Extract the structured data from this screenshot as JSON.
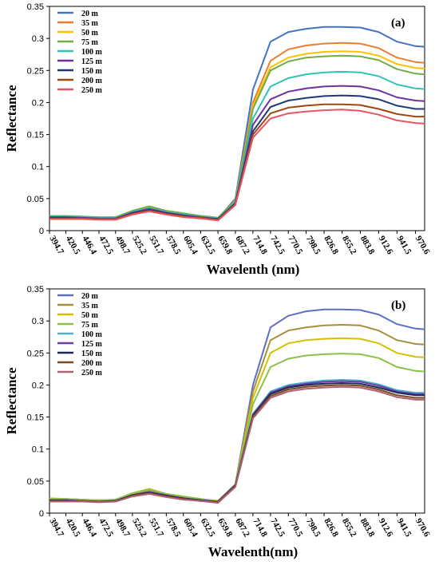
{
  "chart_data": [
    {
      "type": "line",
      "panel_label": "(a)",
      "xlabel": "Wavelenth (nm)",
      "ylabel": "Reflectance",
      "ylim": [
        0,
        0.35
      ],
      "yticks": [
        "0",
        "0.05",
        "0.1",
        "0.15",
        "0.2",
        "0.25",
        "0.3",
        "0.35"
      ],
      "xtick_labels": [
        "394.7",
        "420.5",
        "446.4",
        "472.5",
        "498.7",
        "525.2",
        "551.7",
        "578.5",
        "605.4",
        "632.5",
        "659.8",
        "687.2",
        "714.8",
        "742.5",
        "770.5",
        "798.5",
        "826.8",
        "855.2",
        "883.8",
        "912.6",
        "941.5",
        "970.6"
      ],
      "xlim": [
        394.7,
        985
      ],
      "legend_position": "top-left",
      "x": [
        394.7,
        420.5,
        446.4,
        472.5,
        498.7,
        525.2,
        551.7,
        578.5,
        605.4,
        632.5,
        659.8,
        687.2,
        714.8,
        742.5,
        770.5,
        798.5,
        826.8,
        855.2,
        883.8,
        912.6,
        941.5,
        970.6,
        985
      ],
      "series": [
        {
          "name": "20 m",
          "color": "#4472C4",
          "values": [
            0.021,
            0.021,
            0.02,
            0.019,
            0.02,
            0.029,
            0.035,
            0.029,
            0.025,
            0.022,
            0.019,
            0.05,
            0.22,
            0.295,
            0.31,
            0.315,
            0.318,
            0.318,
            0.317,
            0.31,
            0.295,
            0.288,
            0.287
          ]
        },
        {
          "name": "35 m",
          "color": "#ED7D31",
          "values": [
            0.022,
            0.022,
            0.021,
            0.02,
            0.02,
            0.03,
            0.036,
            0.03,
            0.026,
            0.023,
            0.02,
            0.048,
            0.2,
            0.265,
            0.283,
            0.289,
            0.292,
            0.293,
            0.292,
            0.285,
            0.27,
            0.263,
            0.262
          ]
        },
        {
          "name": "50 m",
          "color": "#FFC000",
          "values": [
            0.023,
            0.022,
            0.021,
            0.02,
            0.021,
            0.03,
            0.037,
            0.031,
            0.026,
            0.023,
            0.02,
            0.047,
            0.195,
            0.255,
            0.27,
            0.276,
            0.279,
            0.28,
            0.279,
            0.273,
            0.26,
            0.254,
            0.253
          ]
        },
        {
          "name": "75 m",
          "color": "#70AD47",
          "values": [
            0.023,
            0.023,
            0.022,
            0.021,
            0.021,
            0.031,
            0.038,
            0.031,
            0.027,
            0.023,
            0.02,
            0.047,
            0.19,
            0.25,
            0.264,
            0.27,
            0.272,
            0.273,
            0.272,
            0.266,
            0.252,
            0.245,
            0.244
          ]
        },
        {
          "name": "100 m",
          "color": "#2EC4B6",
          "values": [
            0.022,
            0.022,
            0.021,
            0.02,
            0.02,
            0.029,
            0.035,
            0.029,
            0.025,
            0.022,
            0.019,
            0.045,
            0.175,
            0.225,
            0.238,
            0.244,
            0.247,
            0.248,
            0.247,
            0.241,
            0.228,
            0.222,
            0.221
          ]
        },
        {
          "name": "125 m",
          "color": "#7030A0",
          "values": [
            0.021,
            0.021,
            0.02,
            0.019,
            0.019,
            0.028,
            0.034,
            0.028,
            0.024,
            0.021,
            0.018,
            0.043,
            0.165,
            0.205,
            0.217,
            0.222,
            0.225,
            0.226,
            0.225,
            0.219,
            0.208,
            0.203,
            0.202
          ]
        },
        {
          "name": "150 m",
          "color": "#1F3A73",
          "values": [
            0.02,
            0.02,
            0.019,
            0.018,
            0.018,
            0.027,
            0.032,
            0.027,
            0.023,
            0.02,
            0.018,
            0.042,
            0.155,
            0.193,
            0.203,
            0.207,
            0.21,
            0.211,
            0.21,
            0.205,
            0.195,
            0.19,
            0.19
          ]
        },
        {
          "name": "200 m",
          "color": "#9E480E",
          "values": [
            0.019,
            0.019,
            0.019,
            0.018,
            0.018,
            0.026,
            0.031,
            0.026,
            0.022,
            0.02,
            0.017,
            0.041,
            0.15,
            0.183,
            0.192,
            0.195,
            0.197,
            0.197,
            0.196,
            0.19,
            0.182,
            0.178,
            0.178
          ]
        },
        {
          "name": "250 m",
          "color": "#E8545F",
          "values": [
            0.018,
            0.018,
            0.018,
            0.017,
            0.017,
            0.025,
            0.03,
            0.025,
            0.021,
            0.019,
            0.016,
            0.04,
            0.145,
            0.175,
            0.183,
            0.186,
            0.188,
            0.189,
            0.187,
            0.181,
            0.172,
            0.168,
            0.167
          ]
        }
      ]
    },
    {
      "type": "line",
      "panel_label": "(b)",
      "xlabel": "Wavelenth(nm)",
      "ylabel": "Reflectance",
      "ylim": [
        0,
        0.35
      ],
      "yticks": [
        "0",
        "0.05",
        "0.1",
        "0.15",
        "0.2",
        "0.25",
        "0.3",
        "0.35"
      ],
      "xtick_labels": [
        "394.7",
        "420.5",
        "446.4",
        "472.5",
        "498.7",
        "525.2",
        "551.7",
        "578.5",
        "605.4",
        "632.5",
        "659.8",
        "687.2",
        "714.8",
        "742.5",
        "770.5",
        "798.5",
        "826.8",
        "855.2",
        "883.8",
        "912.6",
        "941.5",
        "970.6"
      ],
      "xlim": [
        394.7,
        985
      ],
      "legend_position": "top-left",
      "x": [
        394.7,
        420.5,
        446.4,
        472.5,
        498.7,
        525.2,
        551.7,
        578.5,
        605.4,
        632.5,
        659.8,
        687.2,
        714.8,
        742.5,
        770.5,
        798.5,
        826.8,
        855.2,
        883.8,
        912.6,
        941.5,
        970.6,
        985
      ],
      "series": [
        {
          "name": "20 m",
          "color": "#5B6FC8",
          "values": [
            0.022,
            0.022,
            0.021,
            0.02,
            0.021,
            0.03,
            0.036,
            0.029,
            0.025,
            0.022,
            0.019,
            0.045,
            0.2,
            0.29,
            0.308,
            0.315,
            0.318,
            0.318,
            0.317,
            0.31,
            0.295,
            0.288,
            0.287
          ]
        },
        {
          "name": "35 m",
          "color": "#A88E3C",
          "values": [
            0.022,
            0.022,
            0.021,
            0.02,
            0.021,
            0.03,
            0.036,
            0.029,
            0.025,
            0.022,
            0.019,
            0.045,
            0.19,
            0.27,
            0.285,
            0.29,
            0.293,
            0.294,
            0.293,
            0.285,
            0.27,
            0.264,
            0.263
          ]
        },
        {
          "name": "50 m",
          "color": "#D4C000",
          "values": [
            0.023,
            0.022,
            0.021,
            0.02,
            0.021,
            0.031,
            0.038,
            0.03,
            0.026,
            0.022,
            0.019,
            0.045,
            0.18,
            0.25,
            0.265,
            0.27,
            0.272,
            0.273,
            0.272,
            0.265,
            0.25,
            0.244,
            0.243
          ]
        },
        {
          "name": "75 m",
          "color": "#8CC04A",
          "values": [
            0.023,
            0.022,
            0.021,
            0.02,
            0.021,
            0.031,
            0.037,
            0.03,
            0.026,
            0.022,
            0.019,
            0.045,
            0.17,
            0.228,
            0.241,
            0.246,
            0.248,
            0.249,
            0.248,
            0.242,
            0.228,
            0.222,
            0.221
          ]
        },
        {
          "name": "100 m",
          "color": "#4EB5C9",
          "values": [
            0.02,
            0.02,
            0.019,
            0.018,
            0.019,
            0.028,
            0.033,
            0.028,
            0.023,
            0.02,
            0.018,
            0.044,
            0.155,
            0.19,
            0.2,
            0.204,
            0.207,
            0.208,
            0.207,
            0.201,
            0.192,
            0.188,
            0.188
          ]
        },
        {
          "name": "125 m",
          "color": "#6A3FA8",
          "values": [
            0.02,
            0.02,
            0.019,
            0.018,
            0.019,
            0.028,
            0.033,
            0.028,
            0.023,
            0.02,
            0.018,
            0.044,
            0.154,
            0.188,
            0.198,
            0.202,
            0.205,
            0.206,
            0.205,
            0.199,
            0.19,
            0.186,
            0.186
          ]
        },
        {
          "name": "150 m",
          "color": "#1B2A5C",
          "values": [
            0.02,
            0.02,
            0.019,
            0.018,
            0.019,
            0.028,
            0.032,
            0.027,
            0.023,
            0.02,
            0.017,
            0.043,
            0.152,
            0.186,
            0.196,
            0.2,
            0.202,
            0.203,
            0.202,
            0.196,
            0.188,
            0.184,
            0.184
          ]
        },
        {
          "name": "200 m",
          "color": "#7A4A1E",
          "values": [
            0.019,
            0.019,
            0.019,
            0.018,
            0.018,
            0.027,
            0.031,
            0.026,
            0.022,
            0.019,
            0.017,
            0.042,
            0.15,
            0.183,
            0.193,
            0.197,
            0.199,
            0.2,
            0.199,
            0.193,
            0.184,
            0.18,
            0.18
          ]
        },
        {
          "name": "250 m",
          "color": "#B06070",
          "values": [
            0.018,
            0.018,
            0.018,
            0.017,
            0.018,
            0.026,
            0.03,
            0.025,
            0.021,
            0.019,
            0.016,
            0.041,
            0.148,
            0.18,
            0.19,
            0.194,
            0.196,
            0.197,
            0.196,
            0.19,
            0.181,
            0.177,
            0.177
          ]
        }
      ]
    }
  ]
}
